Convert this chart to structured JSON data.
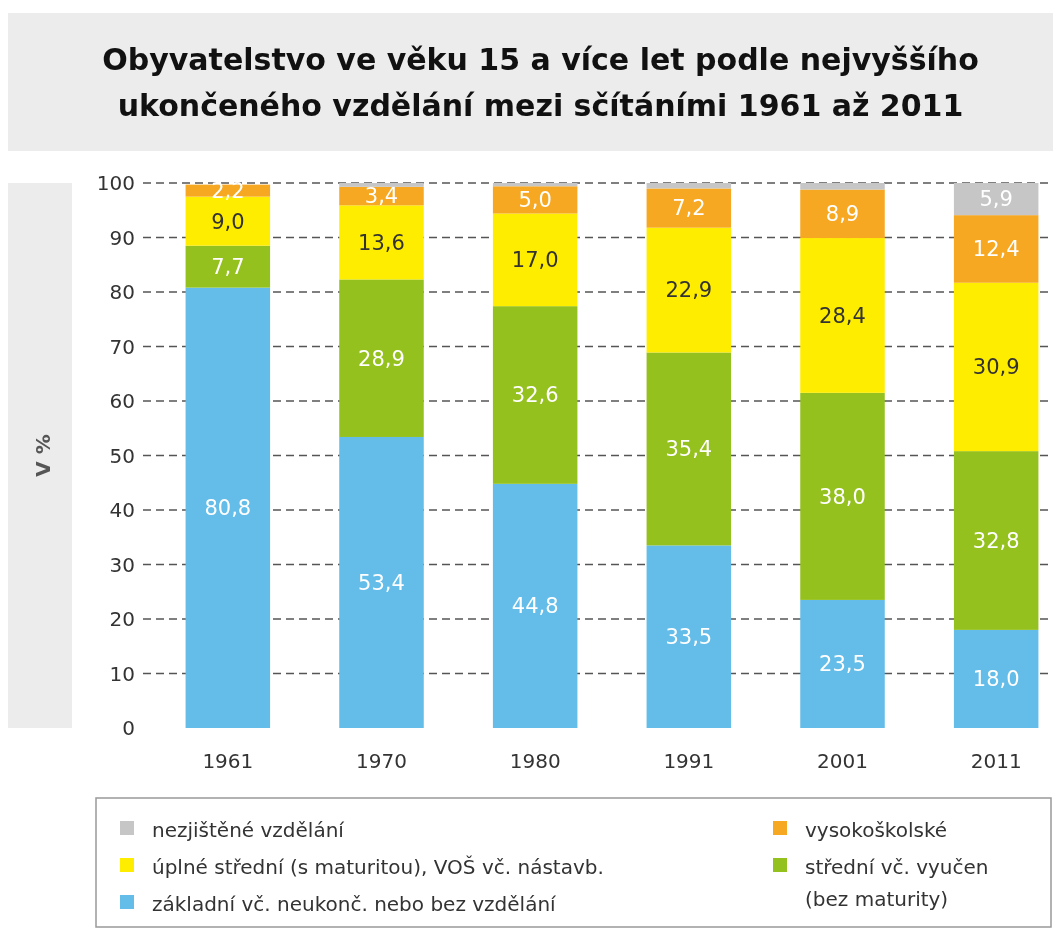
{
  "chart_data": {
    "type": "bar",
    "title": "Obyvatelstvo ve věku 15 a více let podle nejvyššího ukončeného vzdělání mezi sčítáními 1961 až 2011",
    "ylabel": "V %",
    "categories": [
      "1961",
      "1970",
      "1980",
      "1991",
      "2001",
      "2011"
    ],
    "stacked": true,
    "ylim": [
      0,
      100
    ],
    "yticks": [
      0,
      10,
      20,
      30,
      40,
      50,
      60,
      70,
      80,
      90,
      100
    ],
    "grid": "y",
    "legend": "bottom",
    "series": [
      {
        "name": "základní vč. neukonč. nebo bez vzdělání",
        "color": "#64bde9",
        "values": [
          80.8,
          53.4,
          44.8,
          33.5,
          23.5,
          18.0
        ],
        "value_labels": [
          "80,8",
          "53,4",
          "44,8",
          "33,5",
          "23,5",
          "18,0"
        ]
      },
      {
        "name": "střední vč. vyučen (bez maturity)",
        "color": "#95c11f",
        "values": [
          7.7,
          28.9,
          32.6,
          35.4,
          38.0,
          32.8
        ],
        "value_labels": [
          "7,7",
          "28,9",
          "32,6",
          "35,4",
          "38,0",
          "32,8"
        ]
      },
      {
        "name": "úplné střední (s maturitou), VOŠ vč. nástavb.",
        "color": "#ffed00",
        "values": [
          9.0,
          13.6,
          17.0,
          22.9,
          28.4,
          30.9
        ],
        "value_labels": [
          "9,0",
          "13,6",
          "17,0",
          "22,9",
          "28,4",
          "30,9"
        ]
      },
      {
        "name": "vysokoškolské",
        "color": "#f7a823",
        "values": [
          2.2,
          3.4,
          5.0,
          7.2,
          8.9,
          12.4
        ],
        "value_labels": [
          "2,2",
          "3,4",
          "5,0",
          "7,2",
          "8,9",
          "12,4"
        ]
      },
      {
        "name": "nezjištěné vzdělání",
        "color": "#c6c6c6",
        "values": [
          null,
          0.7,
          0.6,
          1.0,
          1.2,
          5.9
        ],
        "value_labels": [
          null,
          null,
          null,
          null,
          null,
          "5,9"
        ]
      }
    ]
  }
}
